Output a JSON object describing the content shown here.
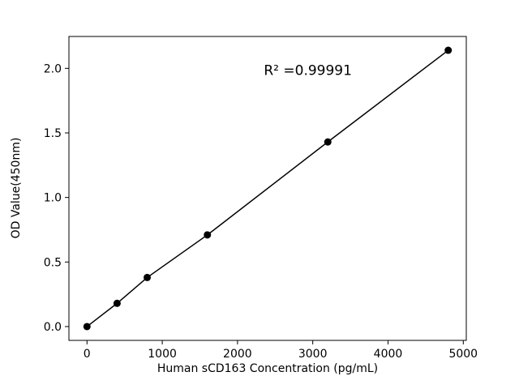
{
  "chart_data": {
    "type": "scatter",
    "subtype": "scatter-with-fit-line",
    "title": "",
    "xlabel": "Human sCD163 Concentration (pg/mL)",
    "ylabel": "OD Value(450nm)",
    "x": [
      0,
      400,
      800,
      1600,
      3200,
      4800
    ],
    "y": [
      0.0,
      0.18,
      0.38,
      0.71,
      1.43,
      2.14
    ],
    "xlim": [
      -240,
      5040
    ],
    "ylim": [
      -0.107,
      2.247
    ],
    "xticks": [
      0,
      1000,
      2000,
      3000,
      4000,
      5000
    ],
    "xtick_labels": [
      "0",
      "1000",
      "2000",
      "3000",
      "4000",
      "5000"
    ],
    "yticks": [
      0.0,
      0.5,
      1.0,
      1.5,
      2.0
    ],
    "ytick_labels": [
      "0.0",
      "0.5",
      "1.0",
      "1.5",
      "2.0"
    ],
    "grid": false,
    "legend": "none",
    "annotation": {
      "text": "R² =0.99991",
      "x": 2350,
      "y": 1.95
    },
    "line_color": "#000000",
    "marker_color": "#000000",
    "axis_color": "#000000",
    "background": "#ffffff"
  }
}
